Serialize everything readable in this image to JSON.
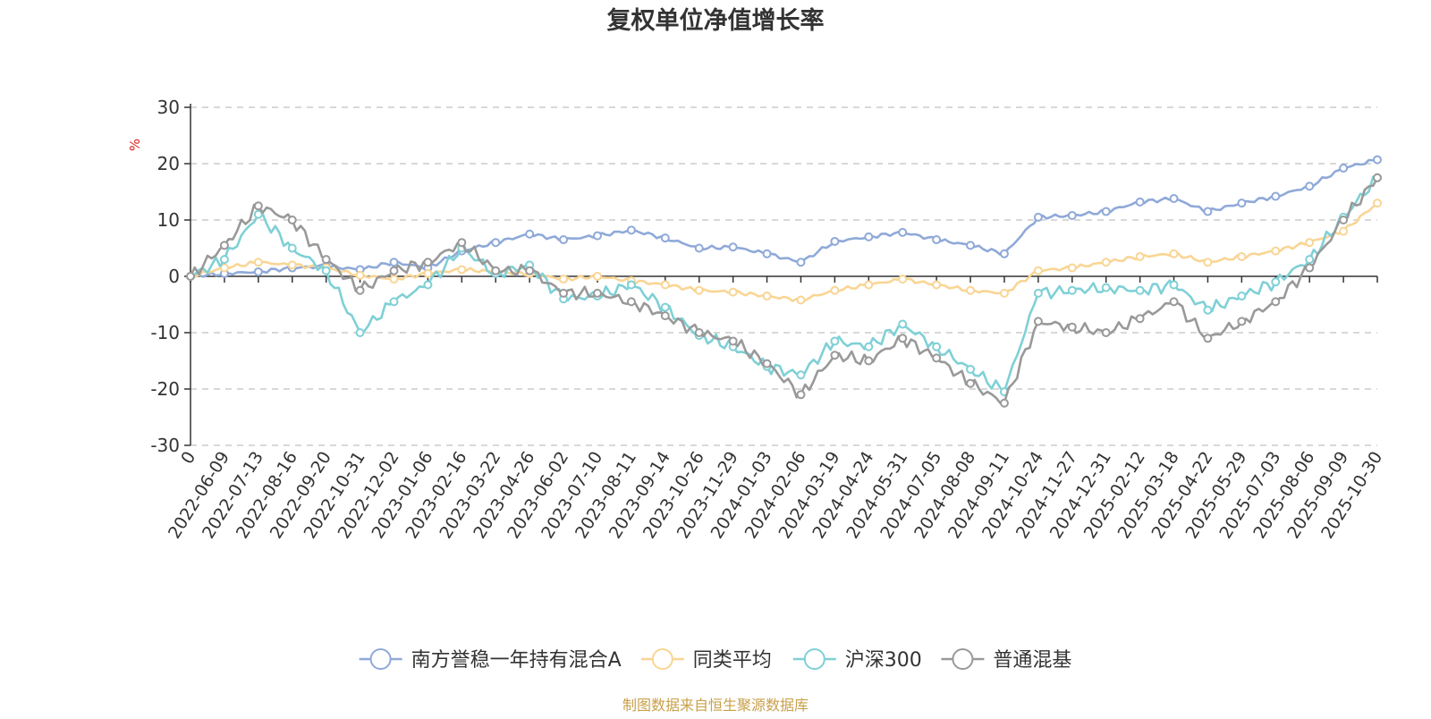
{
  "chart_data": {
    "type": "line",
    "title": "复权单位净值增长率",
    "ylabel": "%",
    "ylabel_color": "#e02020",
    "ylim": [
      -30,
      30
    ],
    "yticks": [
      30,
      20,
      10,
      0,
      -10,
      -20,
      -30
    ],
    "grid": true,
    "legend_position": "bottom-center",
    "x_tick_labels": [
      "0",
      "2022-06-09",
      "2022-07-13",
      "2022-08-16",
      "2022-09-20",
      "2022-10-31",
      "2022-12-02",
      "2023-01-06",
      "2023-02-16",
      "2023-03-22",
      "2023-04-26",
      "2023-06-02",
      "2023-07-10",
      "2023-08-11",
      "2023-09-14",
      "2023-10-26",
      "2023-11-29",
      "2024-01-03",
      "2024-02-06",
      "2024-03-19",
      "2024-04-24",
      "2024-05-31",
      "2024-07-05",
      "2024-08-08",
      "2024-09-11",
      "2024-10-24",
      "2024-11-27",
      "2024-12-31",
      "2025-02-12",
      "2025-03-18",
      "2025-04-22",
      "2025-05-29",
      "2025-07-03",
      "2025-08-06",
      "2025-09-09",
      "2025-10-30"
    ],
    "series": [
      {
        "name": "南方誉稳一年持有混合A",
        "color": "#8fa9d8",
        "values": [
          0,
          0.5,
          0.8,
          1.5,
          1.8,
          1.2,
          2.5,
          1.5,
          4.5,
          6.0,
          7.5,
          6.5,
          7.2,
          8.2,
          6.8,
          5.0,
          5.2,
          4.0,
          2.5,
          6.2,
          7.0,
          7.8,
          6.5,
          5.5,
          4.0,
          10.5,
          10.8,
          11.5,
          13.2,
          13.8,
          11.5,
          13.0,
          14.2,
          16.0,
          19.2,
          20.7
        ]
      },
      {
        "name": "同类平均",
        "color": "#f9d594",
        "values": [
          0,
          1.5,
          2.5,
          2.0,
          1.5,
          0.2,
          -0.5,
          0.5,
          1.2,
          0.8,
          0.5,
          -0.5,
          0,
          -0.8,
          -1.5,
          -2.5,
          -2.8,
          -3.5,
          -4.2,
          -2.5,
          -1.5,
          -0.5,
          -1.5,
          -2.5,
          -3.0,
          1.0,
          1.5,
          2.5,
          3.5,
          4.0,
          2.5,
          3.5,
          4.5,
          6.0,
          8.0,
          13.0
        ]
      },
      {
        "name": "沪深300",
        "color": "#7fd0d6",
        "values": [
          0,
          3.0,
          11.0,
          5.0,
          1.0,
          -10.0,
          -4.5,
          -1.5,
          5.0,
          0.5,
          2.0,
          -4.0,
          -3.5,
          -1.5,
          -5.5,
          -10.5,
          -12.5,
          -16.0,
          -17.5,
          -11.5,
          -12.5,
          -8.5,
          -12.5,
          -16.5,
          -20.5,
          -3.0,
          -2.5,
          -2.0,
          -2.5,
          -1.5,
          -6.0,
          -3.5,
          -1.0,
          3.0,
          10.5,
          17.5
        ]
      },
      {
        "name": "普通混基",
        "color": "#999999",
        "values": [
          0,
          5.5,
          12.5,
          10.0,
          3.0,
          -2.5,
          1.0,
          2.5,
          6.0,
          1.0,
          1.0,
          -3.0,
          -3.0,
          -4.5,
          -7.0,
          -10.0,
          -11.5,
          -15.5,
          -21.0,
          -14.0,
          -15.0,
          -11.0,
          -14.5,
          -19.0,
          -22.5,
          -8.0,
          -9.0,
          -10.0,
          -7.5,
          -4.5,
          -11.0,
          -8.0,
          -4.5,
          1.5,
          10.0,
          17.5
        ]
      }
    ]
  },
  "footer": {
    "source": "制图数据来自恒生聚源数据库",
    "source_color": "#c8a04a"
  }
}
